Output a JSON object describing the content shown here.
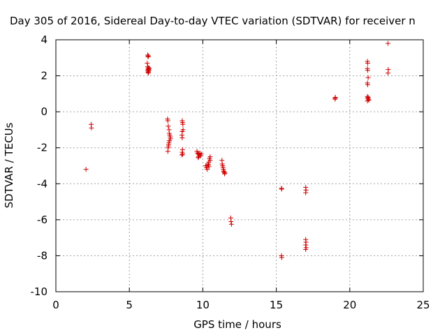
{
  "chart_data": {
    "type": "scatter",
    "title": "Day 305 of 2016, Sidereal Day-to-day VTEC variation (SDTVAR) for receiver n",
    "xlabel": "GPS time / hours",
    "ylabel": "SDTVAR / TECUs",
    "xlim": [
      0,
      25
    ],
    "ylim": [
      -10,
      4
    ],
    "xticks": [
      0,
      5,
      10,
      15,
      20,
      25
    ],
    "yticks": [
      4,
      2,
      0,
      -2,
      -4,
      -6,
      -8,
      -10
    ],
    "xtick_labels": [
      "0",
      "5",
      "10",
      "15",
      "20",
      "25"
    ],
    "ytick_labels": [
      "4",
      "2",
      "0",
      "-2",
      "-4",
      "-6",
      "-8",
      "-10"
    ],
    "grid": true,
    "marker": "+",
    "color": "#d00000",
    "series": [
      {
        "name": "SDTVAR",
        "points": [
          [
            2.05,
            -3.2
          ],
          [
            2.4,
            -0.7
          ],
          [
            2.42,
            -0.9
          ],
          [
            6.25,
            3.15
          ],
          [
            6.27,
            3.05
          ],
          [
            6.3,
            3.1
          ],
          [
            6.22,
            2.7
          ],
          [
            6.25,
            2.5
          ],
          [
            6.28,
            2.4
          ],
          [
            6.3,
            2.35
          ],
          [
            6.32,
            2.45
          ],
          [
            6.25,
            2.3
          ],
          [
            6.3,
            2.25
          ],
          [
            6.35,
            2.4
          ],
          [
            6.27,
            2.2
          ],
          [
            6.3,
            2.15
          ],
          [
            6.33,
            2.3
          ],
          [
            7.6,
            -0.4
          ],
          [
            7.62,
            -0.5
          ],
          [
            7.65,
            -0.8
          ],
          [
            7.7,
            -1.0
          ],
          [
            7.72,
            -1.2
          ],
          [
            7.75,
            -1.3
          ],
          [
            7.78,
            -1.4
          ],
          [
            7.8,
            -1.5
          ],
          [
            7.73,
            -1.6
          ],
          [
            7.7,
            -1.7
          ],
          [
            7.68,
            -1.8
          ],
          [
            7.66,
            -1.9
          ],
          [
            7.64,
            -2.0
          ],
          [
            7.62,
            -2.2
          ],
          [
            8.6,
            -0.5
          ],
          [
            8.62,
            -0.6
          ],
          [
            8.64,
            -0.7
          ],
          [
            8.66,
            -1.0
          ],
          [
            8.6,
            -1.1
          ],
          [
            8.58,
            -1.3
          ],
          [
            8.6,
            -1.45
          ],
          [
            8.62,
            -2.1
          ],
          [
            8.6,
            -2.25
          ],
          [
            8.63,
            -2.35
          ],
          [
            8.58,
            -2.4
          ],
          [
            9.6,
            -2.2
          ],
          [
            9.65,
            -2.3
          ],
          [
            9.7,
            -2.35
          ],
          [
            9.75,
            -2.4
          ],
          [
            9.8,
            -2.3
          ],
          [
            9.85,
            -2.45
          ],
          [
            9.9,
            -2.35
          ],
          [
            9.72,
            -2.5
          ],
          [
            9.68,
            -2.55
          ],
          [
            10.2,
            -3.0
          ],
          [
            10.25,
            -3.1
          ],
          [
            10.3,
            -3.2
          ],
          [
            10.35,
            -2.9
          ],
          [
            10.4,
            -2.8
          ],
          [
            10.45,
            -2.6
          ],
          [
            10.5,
            -2.5
          ],
          [
            10.42,
            -3.05
          ],
          [
            10.38,
            -2.95
          ],
          [
            10.5,
            -2.7
          ],
          [
            11.3,
            -2.7
          ],
          [
            11.32,
            -2.9
          ],
          [
            11.35,
            -3.0
          ],
          [
            11.38,
            -3.1
          ],
          [
            11.4,
            -3.2
          ],
          [
            11.42,
            -3.3
          ],
          [
            11.45,
            -3.35
          ],
          [
            11.5,
            -3.4
          ],
          [
            11.48,
            -3.45
          ],
          [
            11.9,
            -5.9
          ],
          [
            11.92,
            -6.1
          ],
          [
            11.95,
            -6.25
          ],
          [
            15.35,
            -4.25
          ],
          [
            15.37,
            -4.3
          ],
          [
            15.35,
            -8.0
          ],
          [
            15.37,
            -8.1
          ],
          [
            17.0,
            -4.2
          ],
          [
            17.02,
            -4.35
          ],
          [
            17.0,
            -4.5
          ],
          [
            17.0,
            -7.1
          ],
          [
            17.02,
            -7.25
          ],
          [
            17.0,
            -7.4
          ],
          [
            17.03,
            -7.55
          ],
          [
            17.0,
            -7.65
          ],
          [
            19.0,
            0.75
          ],
          [
            19.02,
            0.8
          ],
          [
            19.0,
            0.7
          ],
          [
            21.2,
            2.8
          ],
          [
            21.22,
            2.7
          ],
          [
            21.2,
            2.4
          ],
          [
            21.22,
            2.3
          ],
          [
            21.25,
            1.9
          ],
          [
            21.2,
            1.6
          ],
          [
            21.22,
            1.5
          ],
          [
            21.2,
            0.85
          ],
          [
            21.25,
            0.8
          ],
          [
            21.22,
            0.75
          ],
          [
            21.27,
            0.7
          ],
          [
            21.3,
            0.65
          ],
          [
            21.2,
            0.6
          ],
          [
            22.6,
            3.8
          ],
          [
            22.62,
            2.35
          ],
          [
            22.6,
            2.15
          ]
        ]
      }
    ]
  }
}
